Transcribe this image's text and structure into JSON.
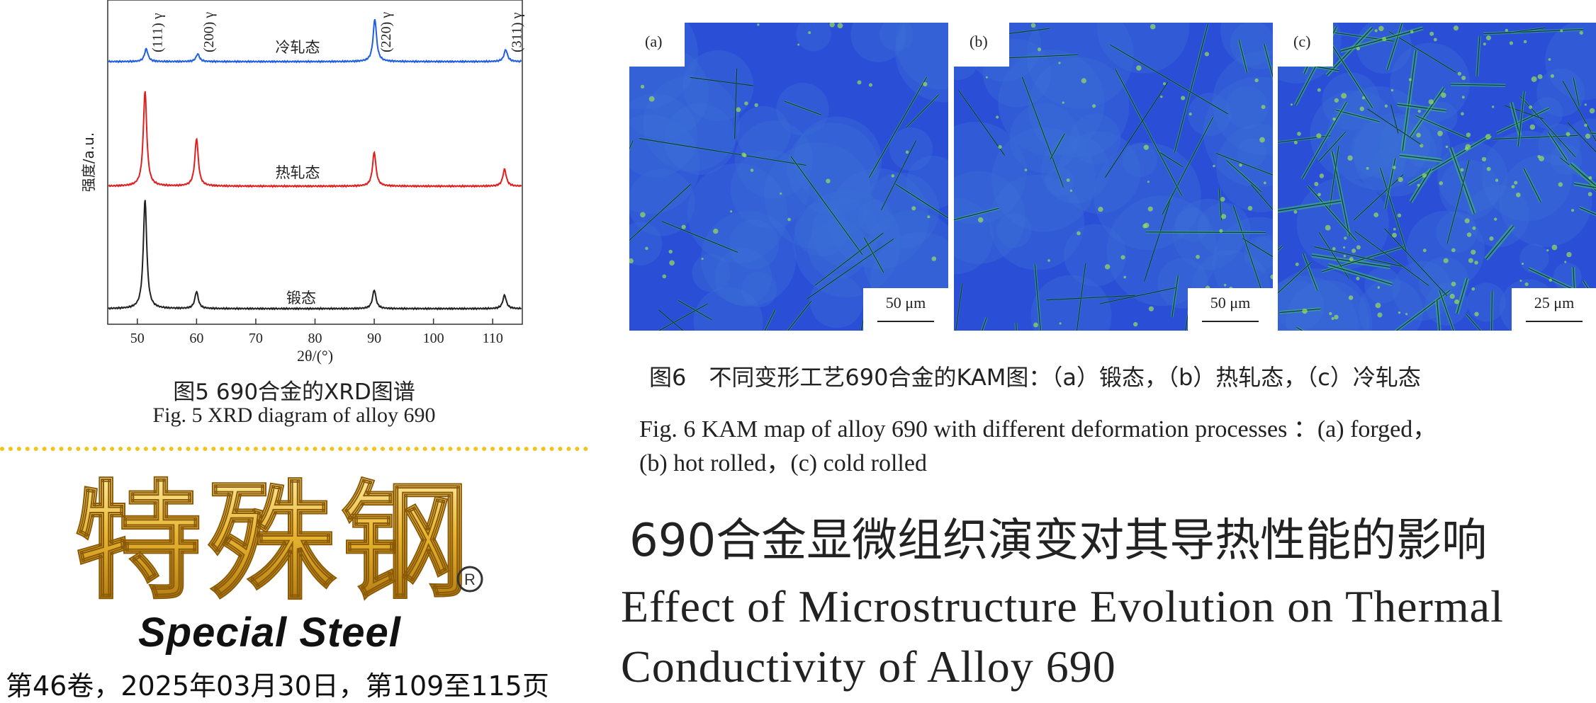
{
  "chart_data": {
    "type": "line",
    "xlabel": "2θ/(°)",
    "ylabel": "强度/a.u.",
    "xlim": [
      45,
      115
    ],
    "xticks": [
      50,
      60,
      70,
      80,
      90,
      100,
      110
    ],
    "grid": false,
    "series": [
      {
        "name": "冷轧态",
        "color": "#1f5fe0",
        "peaks": [
          {
            "x": 51.5,
            "h": 0.3
          },
          {
            "x": 60.2,
            "h": 0.18
          },
          {
            "x": 90.1,
            "h": 1.0
          },
          {
            "x": 112.2,
            "h": 0.28
          }
        ]
      },
      {
        "name": "热轧态",
        "color": "#e02020",
        "peaks": [
          {
            "x": 51.3,
            "h": 2.8
          },
          {
            "x": 60.0,
            "h": 1.4
          },
          {
            "x": 90.0,
            "h": 1.0
          },
          {
            "x": 112.0,
            "h": 0.5
          }
        ]
      },
      {
        "name": "锻态",
        "color": "#222222",
        "peaks": [
          {
            "x": 51.3,
            "h": 3.2
          },
          {
            "x": 60.0,
            "h": 0.5
          },
          {
            "x": 90.0,
            "h": 0.55
          },
          {
            "x": 112.0,
            "h": 0.4
          }
        ]
      }
    ],
    "annotations": [
      "(111) γ",
      "(200) γ",
      "(220) γ",
      "(311) γ"
    ]
  },
  "fig5": {
    "caption_cn": "图5 690合金的XRD图谱",
    "caption_en": "Fig. 5 XRD diagram of alloy 690"
  },
  "fig6": {
    "panels": [
      {
        "label": "(a)",
        "scale": "50 μm"
      },
      {
        "label": "(b)",
        "scale": "50 μm"
      },
      {
        "label": "(c)",
        "scale": "25 μm"
      }
    ],
    "caption_cn": "图6　不同变形工艺690合金的KAM图：（a）锻态，（b）热轧态，（c）冷轧态",
    "caption_en_line1": "Fig. 6 KAM map of alloy 690 with different deformation processes ：(a) forged，",
    "caption_en_line2": "(b) hot rolled，(c) cold rolled"
  },
  "journal": {
    "name_cn": "特殊钢",
    "registered": "®",
    "name_en": "Special Steel",
    "issue": "第46卷，2025年03月30日，第109至115页"
  },
  "article": {
    "title_cn": "690合金显微组织演变对其导热性能的影响",
    "title_en_line1": "Effect of Microstructure Evolution on Thermal",
    "title_en_line2": "Conductivity of Alloy 690"
  },
  "colors": {
    "kam_base": "#2a4fd6",
    "kam_high": "#3fc46a",
    "dots": "#f2c318",
    "gold": "#e0a520"
  }
}
